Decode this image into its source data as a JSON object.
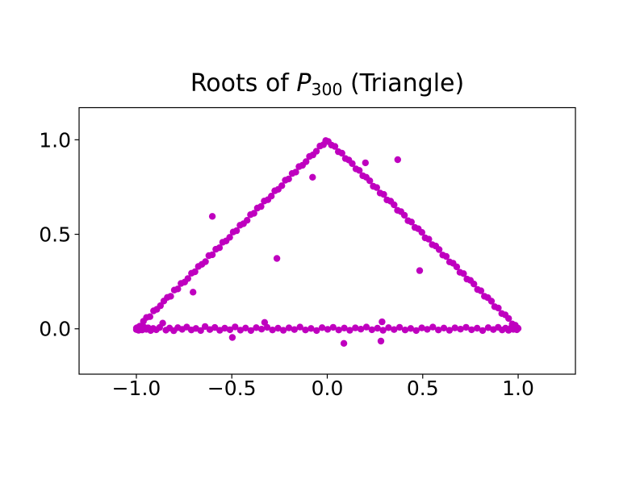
{
  "chart_data": {
    "type": "scatter",
    "title": {
      "prefix": "Roots of ",
      "var": "P",
      "sub": "300",
      "suffix": " (Triangle)"
    },
    "xlabel": "",
    "ylabel": "",
    "grid": false,
    "legend": null,
    "marker_color": "#bf00bf",
    "marker_radius_px": 4.2,
    "axis_color": "#000000",
    "xlim": [
      -1.3,
      1.3
    ],
    "ylim": [
      -0.24,
      1.17
    ],
    "x_tick_values": [
      -1.0,
      -0.5,
      0.0,
      0.5,
      1.0
    ],
    "x_tick_labels": [
      "−1.0",
      "−0.5",
      "0.0",
      "0.5",
      "1.0"
    ],
    "y_tick_values": [
      0.0,
      0.5,
      1.0
    ],
    "y_tick_labels": [
      "0.0",
      "0.5",
      "1.0"
    ],
    "series": [
      {
        "name": "left-edge",
        "points": [
          [
            -1.0,
            0.004
          ],
          [
            -0.982,
            0.014
          ],
          [
            -0.963,
            0.04
          ],
          [
            -0.947,
            0.06
          ],
          [
            -0.929,
            0.064
          ],
          [
            -0.91,
            0.095
          ],
          [
            -0.893,
            0.103
          ],
          [
            -0.874,
            0.122
          ],
          [
            -0.856,
            0.147
          ],
          [
            -0.838,
            0.166
          ],
          [
            -0.82,
            0.172
          ],
          [
            -0.801,
            0.205
          ],
          [
            -0.783,
            0.211
          ],
          [
            -0.766,
            0.24
          ],
          [
            -0.747,
            0.247
          ],
          [
            -0.73,
            0.266
          ],
          [
            -0.711,
            0.294
          ],
          [
            -0.693,
            0.302
          ],
          [
            -0.675,
            0.33
          ],
          [
            -0.657,
            0.341
          ],
          [
            -0.638,
            0.355
          ],
          [
            -0.62,
            0.387
          ],
          [
            -0.602,
            0.392
          ],
          [
            -0.584,
            0.421
          ],
          [
            -0.565,
            0.429
          ],
          [
            -0.548,
            0.458
          ],
          [
            -0.53,
            0.465
          ],
          [
            -0.511,
            0.484
          ],
          [
            -0.493,
            0.512
          ],
          [
            -0.475,
            0.519
          ],
          [
            -0.457,
            0.548
          ],
          [
            -0.439,
            0.556
          ],
          [
            -0.42,
            0.574
          ],
          [
            -0.402,
            0.604
          ],
          [
            -0.384,
            0.611
          ],
          [
            -0.366,
            0.639
          ],
          [
            -0.347,
            0.647
          ],
          [
            -0.33,
            0.676
          ],
          [
            -0.311,
            0.683
          ],
          [
            -0.293,
            0.702
          ],
          [
            -0.275,
            0.73
          ],
          [
            -0.257,
            0.738
          ],
          [
            -0.238,
            0.757
          ],
          [
            -0.22,
            0.786
          ],
          [
            -0.202,
            0.793
          ],
          [
            -0.184,
            0.822
          ],
          [
            -0.165,
            0.829
          ],
          [
            -0.148,
            0.858
          ],
          [
            -0.13,
            0.865
          ],
          [
            -0.111,
            0.884
          ],
          [
            -0.093,
            0.912
          ],
          [
            -0.075,
            0.92
          ],
          [
            -0.057,
            0.939
          ],
          [
            -0.038,
            0.967
          ],
          [
            -0.02,
            0.974
          ],
          [
            -0.008,
            0.996
          ]
        ]
      },
      {
        "name": "right-edge",
        "points": [
          [
            0.005,
            0.991
          ],
          [
            0.022,
            0.972
          ],
          [
            0.04,
            0.965
          ],
          [
            0.058,
            0.937
          ],
          [
            0.077,
            0.929
          ],
          [
            0.095,
            0.901
          ],
          [
            0.113,
            0.893
          ],
          [
            0.131,
            0.874
          ],
          [
            0.15,
            0.846
          ],
          [
            0.168,
            0.838
          ],
          [
            0.186,
            0.81
          ],
          [
            0.204,
            0.802
          ],
          [
            0.223,
            0.783
          ],
          [
            0.241,
            0.754
          ],
          [
            0.259,
            0.747
          ],
          [
            0.277,
            0.718
          ],
          [
            0.296,
            0.711
          ],
          [
            0.313,
            0.682
          ],
          [
            0.332,
            0.675
          ],
          [
            0.35,
            0.656
          ],
          [
            0.368,
            0.627
          ],
          [
            0.386,
            0.62
          ],
          [
            0.404,
            0.601
          ],
          [
            0.423,
            0.572
          ],
          [
            0.441,
            0.565
          ],
          [
            0.459,
            0.536
          ],
          [
            0.477,
            0.529
          ],
          [
            0.496,
            0.51
          ],
          [
            0.513,
            0.481
          ],
          [
            0.532,
            0.474
          ],
          [
            0.55,
            0.445
          ],
          [
            0.568,
            0.438
          ],
          [
            0.586,
            0.419
          ],
          [
            0.605,
            0.39
          ],
          [
            0.623,
            0.383
          ],
          [
            0.641,
            0.354
          ],
          [
            0.659,
            0.347
          ],
          [
            0.678,
            0.328
          ],
          [
            0.695,
            0.299
          ],
          [
            0.714,
            0.292
          ],
          [
            0.732,
            0.263
          ],
          [
            0.75,
            0.256
          ],
          [
            0.768,
            0.237
          ],
          [
            0.787,
            0.208
          ],
          [
            0.805,
            0.201
          ],
          [
            0.823,
            0.172
          ],
          [
            0.841,
            0.165
          ],
          [
            0.86,
            0.146
          ],
          [
            0.877,
            0.117
          ],
          [
            0.896,
            0.11
          ],
          [
            0.914,
            0.081
          ],
          [
            0.932,
            0.074
          ],
          [
            0.95,
            0.055
          ],
          [
            0.969,
            0.026
          ],
          [
            0.985,
            0.019
          ],
          [
            0.998,
            0.004
          ]
        ]
      },
      {
        "name": "real-axis-base",
        "points": [
          [
            -1.0,
            -0.004
          ],
          [
            -0.995,
            0.006
          ],
          [
            -0.988,
            -0.008
          ],
          [
            -0.979,
            0.003
          ],
          [
            -0.97,
            -0.006
          ],
          [
            -0.959,
            0.008
          ],
          [
            -0.948,
            -0.003
          ],
          [
            -0.938,
            0.005
          ],
          [
            -0.925,
            -0.009
          ],
          [
            -0.912,
            0.002
          ],
          [
            -0.896,
            -0.005
          ],
          [
            -0.878,
            0.007
          ],
          [
            -0.862,
            0.03
          ],
          [
            -0.845,
            -0.007
          ],
          [
            -0.826,
            0.004
          ],
          [
            -0.804,
            -0.01
          ],
          [
            -0.783,
            0.006
          ],
          [
            -0.76,
            -0.003
          ],
          [
            -0.736,
            0.009
          ],
          [
            -0.712,
            -0.006
          ],
          [
            -0.688,
            0.002
          ],
          [
            -0.663,
            -0.009
          ],
          [
            -0.64,
            0.012
          ],
          [
            -0.615,
            -0.004
          ],
          [
            -0.589,
            0.007
          ],
          [
            -0.563,
            -0.008
          ],
          [
            -0.537,
            0.003
          ],
          [
            -0.51,
            -0.005
          ],
          [
            -0.483,
            0.01
          ],
          [
            -0.455,
            -0.007
          ],
          [
            -0.428,
            0.004
          ],
          [
            -0.4,
            -0.009
          ],
          [
            -0.372,
            0.006
          ],
          [
            -0.344,
            -0.002
          ],
          [
            -0.328,
            0.034
          ],
          [
            -0.315,
            0.008
          ],
          [
            -0.287,
            -0.006
          ],
          [
            -0.258,
            0.003
          ],
          [
            -0.23,
            -0.008
          ],
          [
            -0.201,
            0.005
          ],
          [
            -0.172,
            -0.004
          ],
          [
            -0.143,
            0.009
          ],
          [
            -0.114,
            -0.006
          ],
          [
            -0.085,
            0.002
          ],
          [
            -0.056,
            -0.009
          ],
          [
            -0.027,
            0.006
          ],
          [
            0.002,
            -0.003
          ],
          [
            0.031,
            0.008
          ],
          [
            0.06,
            -0.006
          ],
          [
            0.089,
            0.004
          ],
          [
            0.118,
            -0.008
          ],
          [
            0.147,
            0.005
          ],
          [
            0.176,
            -0.002
          ],
          [
            0.205,
            0.009
          ],
          [
            0.234,
            -0.005
          ],
          [
            0.263,
            0.003
          ],
          [
            0.287,
            0.037
          ],
          [
            0.292,
            -0.008
          ],
          [
            0.321,
            0.006
          ],
          [
            0.35,
            -0.004
          ],
          [
            0.379,
            0.008
          ],
          [
            0.408,
            -0.006
          ],
          [
            0.437,
            0.002
          ],
          [
            0.466,
            -0.009
          ],
          [
            0.495,
            0.005
          ],
          [
            0.524,
            -0.003
          ],
          [
            0.553,
            0.009
          ],
          [
            0.582,
            -0.006
          ],
          [
            0.611,
            0.004
          ],
          [
            0.64,
            -0.008
          ],
          [
            0.669,
            0.005
          ],
          [
            0.698,
            -0.002
          ],
          [
            0.727,
            0.008
          ],
          [
            0.756,
            -0.005
          ],
          [
            0.785,
            0.003
          ],
          [
            0.814,
            -0.009
          ],
          [
            0.843,
            0.006
          ],
          [
            0.87,
            -0.004
          ],
          [
            0.895,
            0.008
          ],
          [
            0.916,
            -0.006
          ],
          [
            0.934,
            0.003
          ],
          [
            0.95,
            -0.008
          ],
          [
            0.963,
            0.005
          ],
          [
            0.975,
            -0.003
          ],
          [
            0.985,
            0.007
          ],
          [
            0.993,
            -0.005
          ],
          [
            1.0,
            0.002
          ]
        ]
      },
      {
        "name": "outliers",
        "points": [
          [
            -0.602,
            0.595
          ],
          [
            -0.264,
            0.372
          ],
          [
            -0.703,
            0.194
          ],
          [
            0.369,
            0.895
          ],
          [
            0.2,
            0.878
          ],
          [
            -0.077,
            0.802
          ],
          [
            0.484,
            0.308
          ],
          [
            -0.497,
            -0.046
          ],
          [
            0.087,
            -0.077
          ],
          [
            0.281,
            -0.065
          ]
        ]
      }
    ]
  }
}
